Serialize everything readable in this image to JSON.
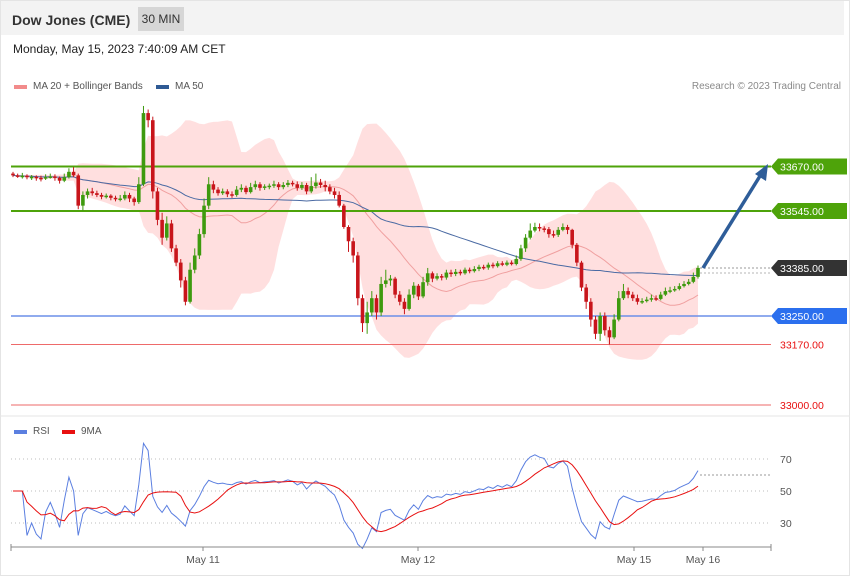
{
  "header": {
    "title": "Dow Jones (CME)",
    "interval": "30 MIN"
  },
  "timestamp": "Monday, May 15, 2023 7:40:09 AM CET",
  "legend_main": [
    {
      "label": "MA 20 + Bollinger Bands",
      "color": "#f28b8b"
    },
    {
      "label": "MA 50",
      "color": "#2f5a94"
    }
  ],
  "legend_rsi": [
    {
      "label": "RSI",
      "color": "#5b7fe0"
    },
    {
      "label": "9MA",
      "color": "#e81010"
    }
  ],
  "credit": "Research © 2023 Trading Central",
  "price_levels": [
    {
      "value": 33670,
      "label": "33670.00",
      "kind": "resistance",
      "color": "#5aa80e"
    },
    {
      "value": 33545,
      "label": "33545.00",
      "kind": "resistance",
      "color": "#5aa80e"
    },
    {
      "value": 33385,
      "label": "33385.00",
      "kind": "current",
      "color": "#333333"
    },
    {
      "value": 33250,
      "label": "33250.00",
      "kind": "pivot",
      "color": "#2b6fee"
    },
    {
      "value": 33170,
      "label": "33170.00",
      "kind": "support",
      "color": "#e81010"
    },
    {
      "value": 33000,
      "label": "33000.00",
      "kind": "support",
      "color": "#e81010"
    }
  ],
  "chart_data": [
    {
      "type": "candlestick",
      "x_labels": [
        "May 11",
        "May 12",
        "May 15",
        "May 16"
      ],
      "ylim": [
        33000,
        33900
      ],
      "candles": [
        [
          33650,
          33645,
          33655,
          33640
        ],
        [
          33645,
          33642,
          33650,
          33638
        ],
        [
          33642,
          33644,
          33652,
          33636
        ],
        [
          33644,
          33640,
          33648,
          33634
        ],
        [
          33640,
          33641,
          33646,
          33632
        ],
        [
          33641,
          33638,
          33645,
          33630
        ],
        [
          33638,
          33636,
          33644,
          33628
        ],
        [
          33636,
          33640,
          33648,
          33632
        ],
        [
          33640,
          33642,
          33650,
          33636
        ],
        [
          33642,
          33638,
          33648,
          33630
        ],
        [
          33638,
          33630,
          33642,
          33622
        ],
        [
          33630,
          33640,
          33650,
          33626
        ],
        [
          33640,
          33655,
          33665,
          33636
        ],
        [
          33655,
          33645,
          33668,
          33640
        ],
        [
          33645,
          33560,
          33650,
          33550
        ],
        [
          33560,
          33590,
          33600,
          33545
        ],
        [
          33590,
          33600,
          33608,
          33580
        ],
        [
          33600,
          33595,
          33610,
          33588
        ],
        [
          33595,
          33590,
          33602,
          33584
        ],
        [
          33590,
          33585,
          33596,
          33578
        ],
        [
          33585,
          33588,
          33594,
          33580
        ],
        [
          33588,
          33582,
          33592,
          33575
        ],
        [
          33582,
          33578,
          33588,
          33572
        ],
        [
          33578,
          33580,
          33590,
          33572
        ],
        [
          33580,
          33590,
          33600,
          33575
        ],
        [
          33590,
          33580,
          33596,
          33570
        ],
        [
          33580,
          33570,
          33585,
          33560
        ],
        [
          33570,
          33620,
          33640,
          33565
        ],
        [
          33620,
          33820,
          33840,
          33615
        ],
        [
          33820,
          33800,
          33830,
          33780
        ],
        [
          33800,
          33600,
          33810,
          33580
        ],
        [
          33600,
          33520,
          33610,
          33505
        ],
        [
          33520,
          33470,
          33540,
          33450
        ],
        [
          33470,
          33510,
          33530,
          33462
        ],
        [
          33510,
          33440,
          33520,
          33430
        ],
        [
          33440,
          33400,
          33450,
          33390
        ],
        [
          33400,
          33350,
          33410,
          33330
        ],
        [
          33350,
          33290,
          33360,
          33280
        ],
        [
          33290,
          33380,
          33400,
          33285
        ],
        [
          33380,
          33420,
          33440,
          33370
        ],
        [
          33420,
          33480,
          33495,
          33410
        ],
        [
          33480,
          33560,
          33580,
          33470
        ],
        [
          33560,
          33620,
          33640,
          33550
        ],
        [
          33620,
          33605,
          33630,
          33595
        ],
        [
          33605,
          33595,
          33612,
          33588
        ],
        [
          33595,
          33600,
          33608,
          33590
        ],
        [
          33600,
          33592,
          33606,
          33584
        ],
        [
          33592,
          33590,
          33600,
          33582
        ],
        [
          33590,
          33605,
          33615,
          33585
        ],
        [
          33605,
          33610,
          33620,
          33598
        ],
        [
          33610,
          33598,
          33616,
          33592
        ],
        [
          33598,
          33612,
          33624,
          33594
        ],
        [
          33612,
          33620,
          33630,
          33605
        ],
        [
          33620,
          33610,
          33626,
          33602
        ],
        [
          33610,
          33614,
          33620,
          33604
        ],
        [
          33614,
          33616,
          33622,
          33606
        ],
        [
          33616,
          33620,
          33630,
          33610
        ],
        [
          33620,
          33612,
          33626,
          33604
        ],
        [
          33612,
          33618,
          33626,
          33606
        ],
        [
          33618,
          33624,
          33632,
          33612
        ],
        [
          33624,
          33620,
          33630,
          33614
        ],
        [
          33620,
          33610,
          33628,
          33602
        ],
        [
          33610,
          33618,
          33626,
          33604
        ],
        [
          33618,
          33600,
          33624,
          33592
        ],
        [
          33600,
          33615,
          33640,
          33595
        ],
        [
          33615,
          33625,
          33650,
          33608
        ],
        [
          33625,
          33618,
          33635,
          33610
        ],
        [
          33618,
          33612,
          33630,
          33600
        ],
        [
          33612,
          33600,
          33620,
          33592
        ],
        [
          33600,
          33590,
          33610,
          33580
        ],
        [
          33590,
          33560,
          33600,
          33555
        ],
        [
          33560,
          33500,
          33565,
          33495
        ],
        [
          33500,
          33460,
          33505,
          33430
        ],
        [
          33460,
          33420,
          33470,
          33400
        ],
        [
          33420,
          33300,
          33430,
          33280
        ],
        [
          33300,
          33230,
          33310,
          33205
        ],
        [
          33230,
          33260,
          33290,
          33200
        ],
        [
          33260,
          33300,
          33320,
          33250
        ],
        [
          33300,
          33260,
          33310,
          33240
        ],
        [
          33260,
          33340,
          33360,
          33250
        ],
        [
          33340,
          33350,
          33380,
          33330
        ],
        [
          33350,
          33355,
          33365,
          33335
        ],
        [
          33355,
          33310,
          33360,
          33300
        ],
        [
          33310,
          33290,
          33320,
          33280
        ],
        [
          33290,
          33270,
          33300,
          33255
        ],
        [
          33270,
          33310,
          33325,
          33265
        ],
        [
          33310,
          33335,
          33345,
          33300
        ],
        [
          33335,
          33305,
          33340,
          33295
        ],
        [
          33305,
          33345,
          33360,
          33300
        ],
        [
          33345,
          33370,
          33385,
          33335
        ],
        [
          33370,
          33355,
          33375,
          33345
        ],
        [
          33355,
          33362,
          33370,
          33350
        ],
        [
          33362,
          33358,
          33368,
          33350
        ],
        [
          33358,
          33372,
          33380,
          33352
        ],
        [
          33372,
          33368,
          33380,
          33360
        ],
        [
          33368,
          33374,
          33382,
          33362
        ],
        [
          33374,
          33370,
          33380,
          33364
        ],
        [
          33370,
          33380,
          33386,
          33366
        ],
        [
          33380,
          33376,
          33386,
          33370
        ],
        [
          33376,
          33382,
          33390,
          33372
        ],
        [
          33382,
          33388,
          33394,
          33376
        ],
        [
          33388,
          33386,
          33394,
          33380
        ],
        [
          33386,
          33394,
          33400,
          33380
        ],
        [
          33394,
          33390,
          33400,
          33384
        ],
        [
          33390,
          33398,
          33404,
          33386
        ],
        [
          33398,
          33394,
          33404,
          33390
        ],
        [
          33394,
          33400,
          33406,
          33390
        ],
        [
          33400,
          33396,
          33406,
          33392
        ],
        [
          33396,
          33410,
          33420,
          33392
        ],
        [
          33410,
          33440,
          33450,
          33405
        ],
        [
          33440,
          33470,
          33480,
          33430
        ],
        [
          33470,
          33490,
          33510,
          33465
        ],
        [
          33490,
          33500,
          33512,
          33485
        ],
        [
          33500,
          33496,
          33510,
          33488
        ],
        [
          33496,
          33494,
          33502,
          33485
        ],
        [
          33494,
          33480,
          33500,
          33470
        ],
        [
          33480,
          33478,
          33490,
          33470
        ],
        [
          33478,
          33492,
          33500,
          33472
        ],
        [
          33492,
          33500,
          33510,
          33488
        ],
        [
          33500,
          33492,
          33506,
          33480
        ],
        [
          33492,
          33450,
          33495,
          33440
        ],
        [
          33450,
          33400,
          33455,
          33390
        ],
        [
          33400,
          33330,
          33405,
          33320
        ],
        [
          33330,
          33290,
          33340,
          33270
        ],
        [
          33290,
          33240,
          33300,
          33220
        ],
        [
          33240,
          33200,
          33250,
          33185
        ],
        [
          33200,
          33250,
          33260,
          33180
        ],
        [
          33250,
          33210,
          33260,
          33195
        ],
        [
          33210,
          33190,
          33220,
          33170
        ],
        [
          33190,
          33240,
          33255,
          33185
        ],
        [
          33240,
          33300,
          33320,
          33235
        ],
        [
          33300,
          33320,
          33340,
          33295
        ],
        [
          33320,
          33310,
          33330,
          33300
        ],
        [
          33310,
          33300,
          33318,
          33292
        ],
        [
          33300,
          33290,
          33310,
          33282
        ],
        [
          33290,
          33292,
          33300,
          33284
        ],
        [
          33292,
          33296,
          33304,
          33288
        ],
        [
          33296,
          33300,
          33310,
          33290
        ],
        [
          33300,
          33298,
          33308,
          33292
        ],
        [
          33298,
          33310,
          33318,
          33294
        ],
        [
          33310,
          33320,
          33330,
          33306
        ],
        [
          33320,
          33322,
          33332,
          33314
        ],
        [
          33322,
          33326,
          33334,
          33318
        ],
        [
          33326,
          33334,
          33342,
          33322
        ],
        [
          33334,
          33340,
          33348,
          33330
        ],
        [
          33340,
          33346,
          33354,
          33336
        ],
        [
          33346,
          33360,
          33372,
          33342
        ],
        [
          33360,
          33385,
          33392,
          33355
        ]
      ]
    },
    {
      "type": "line",
      "name": "RSI",
      "ylim": [
        0,
        100
      ],
      "ticks": [
        70,
        50,
        30
      ]
    }
  ]
}
